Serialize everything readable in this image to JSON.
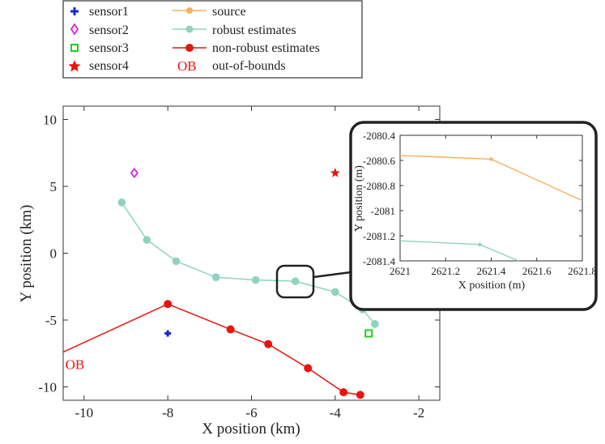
{
  "colors": {
    "source": "#f5b061",
    "robust": "#8ed3c0",
    "nonrobust": "#e8140e",
    "sensor1": "#1a22d6",
    "sensor2": "#e020e0",
    "sensor3": "#18d418",
    "sensor4": "#e8140e",
    "ob": "#e8140e"
  },
  "legend": {
    "sensor1": "sensor1",
    "sensor2": "sensor2",
    "sensor3": "sensor3",
    "sensor4": "sensor4",
    "source": "source",
    "robust": "robust estimates",
    "nonrobust": "non-robust estimates",
    "ob_symbol": "OB",
    "ob": "out-of-bounds"
  },
  "chart_data": [
    {
      "type": "line",
      "xlabel": "X position (km)",
      "ylabel": "Y position (km)",
      "xlim": [
        -10.5,
        -1.5
      ],
      "ylim": [
        -11,
        11
      ],
      "xticks": [
        "-10",
        "-8",
        "-6",
        "-4",
        "-2"
      ],
      "yticks": [
        "10",
        "5",
        "0",
        "-5",
        "-10"
      ],
      "sensors": [
        {
          "name": "sensor1",
          "marker": "plus",
          "x": -8.0,
          "y": -6.0
        },
        {
          "name": "sensor2",
          "marker": "diamond",
          "x": -8.8,
          "y": 6.0
        },
        {
          "name": "sensor3",
          "marker": "square",
          "x": -3.2,
          "y": -6.0
        },
        {
          "name": "sensor4",
          "marker": "star",
          "x": -4.0,
          "y": 6.0
        }
      ],
      "series": [
        {
          "name": "robust estimates",
          "x": [
            -9.1,
            -8.5,
            -7.8,
            -6.85,
            -5.9,
            -4.95,
            -4.0,
            -3.35,
            -3.05
          ],
          "y": [
            3.8,
            1.0,
            -0.6,
            -1.8,
            -2.0,
            -2.1,
            -2.9,
            -4.2,
            -5.3
          ]
        },
        {
          "name": "non-robust estimates",
          "x": [
            -10.5,
            -8.0,
            -6.5,
            -5.6,
            -4.65,
            -3.8,
            -3.4
          ],
          "y": [
            -7.4,
            -3.8,
            -5.7,
            -6.8,
            -8.6,
            -10.4,
            -10.6
          ]
        }
      ],
      "annotations": [
        {
          "text": "OB",
          "x": -10.45,
          "y": -8.3
        }
      ]
    },
    {
      "type": "line",
      "xlabel": "X position (m)",
      "ylabel": "Y position (m)",
      "xlim": [
        2621,
        2621.8
      ],
      "ylim": [
        -2081.4,
        -2080.4
      ],
      "xticks": [
        "2621",
        "2621.2",
        "2621.4",
        "2621.6",
        "2621.8"
      ],
      "yticks": [
        "-2080.4",
        "-2080.6",
        "-2080.8",
        "-2081",
        "-2081.2",
        "-2081.4"
      ],
      "series": [
        {
          "name": "source",
          "x": [
            2621.0,
            2621.4,
            2621.8
          ],
          "y": [
            -2080.56,
            -2080.59,
            -2080.92
          ]
        },
        {
          "name": "robust estimates",
          "x": [
            2621.0,
            2621.35,
            2621.52
          ],
          "y": [
            -2081.24,
            -2081.27,
            -2081.4
          ]
        }
      ]
    }
  ]
}
